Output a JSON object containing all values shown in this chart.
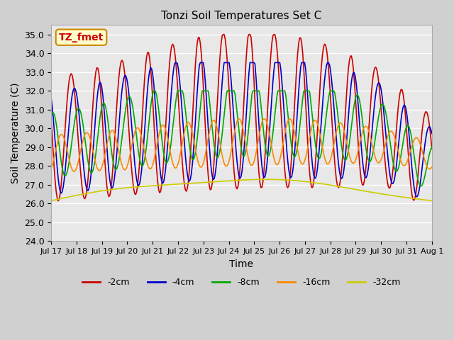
{
  "title": "Tonzi Soil Temperatures Set C",
  "xlabel": "Time",
  "ylabel": "Soil Temperature (C)",
  "ylim": [
    24.0,
    35.5
  ],
  "yticks": [
    24.0,
    25.0,
    26.0,
    27.0,
    28.0,
    29.0,
    30.0,
    31.0,
    32.0,
    33.0,
    34.0,
    35.0
  ],
  "colors": {
    "-2cm": "#cc0000",
    "-4cm": "#0000cc",
    "-8cm": "#00aa00",
    "-16cm": "#ff8800",
    "-32cm": "#cccc00"
  },
  "annotation_text": "TZ_fmet",
  "annotation_color": "#cc0000",
  "annotation_bg": "#ffffcc",
  "annotation_border": "#cc8800",
  "xtick_labels": [
    "Jul 17",
    "Jul 18",
    "Jul 19",
    "Jul 20",
    "Jul 21",
    "Jul 22",
    "Jul 23",
    "Jul 24",
    "Jul 25",
    "Jul 26",
    "Jul 27",
    "Jul 28",
    "Jul 29",
    "Jul 30",
    "Jul 31",
    "Aug 1"
  ],
  "n_points": 384,
  "days": 15
}
